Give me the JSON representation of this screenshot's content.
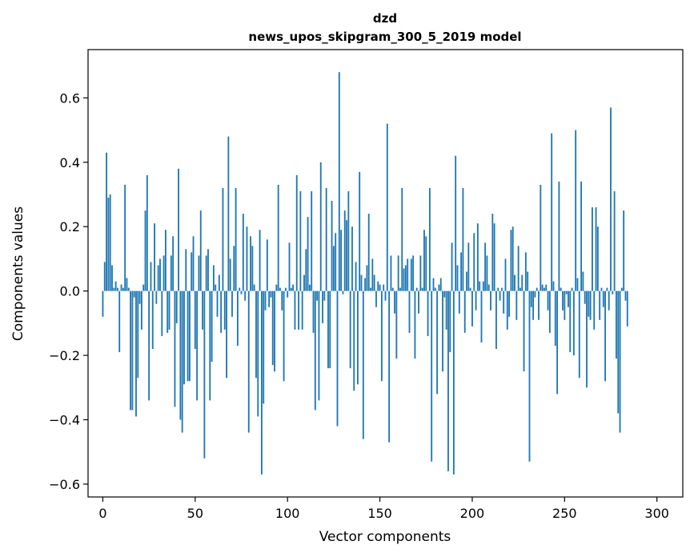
{
  "chart_data": {
    "type": "bar",
    "title_line1": "dzd",
    "title_line2": "news_upos_skipgram_300_5_2019 model",
    "xlabel": "Vector components",
    "ylabel": "Components values",
    "xlim": [
      -8,
      314
    ],
    "ylim": [
      -0.64,
      0.75
    ],
    "xticks": [
      0,
      50,
      100,
      150,
      200,
      250,
      300
    ],
    "yticks": [
      -0.6,
      -0.4,
      -0.2,
      0.0,
      0.2,
      0.4,
      0.6
    ],
    "ytick_labels": [
      "−0.6",
      "−0.4",
      "−0.2",
      "0.0",
      "0.2",
      "0.4",
      "0.6"
    ],
    "bar_color": "#1f77b4",
    "values": [
      -0.08,
      0.09,
      0.43,
      0.29,
      0.3,
      0.08,
      0.01,
      0.03,
      0.01,
      -0.19,
      0.02,
      0.01,
      0.33,
      0.04,
      0.01,
      -0.37,
      -0.37,
      -0.02,
      -0.39,
      -0.27,
      -0.04,
      -0.12,
      0.02,
      0.25,
      0.36,
      -0.34,
      0.09,
      -0.18,
      0.21,
      -0.04,
      0.08,
      0.1,
      -0.14,
      0.11,
      0.19,
      -0.13,
      -0.12,
      0.11,
      0.17,
      -0.36,
      -0.1,
      0.38,
      -0.4,
      -0.44,
      -0.29,
      0.13,
      -0.28,
      -0.28,
      0.12,
      0.17,
      -0.18,
      -0.34,
      0.11,
      0.25,
      -0.12,
      -0.52,
      0.11,
      0.13,
      -0.34,
      -0.22,
      0.08,
      0.02,
      -0.08,
      0.05,
      -0.13,
      0.32,
      -0.12,
      -0.27,
      0.48,
      0.1,
      -0.08,
      0.14,
      0.32,
      -0.17,
      0.01,
      -0.01,
      0.24,
      -0.03,
      0.2,
      -0.44,
      0.17,
      0.14,
      0.02,
      -0.27,
      -0.39,
      0.19,
      -0.57,
      -0.35,
      -0.06,
      0.16,
      -0.05,
      -0.02,
      -0.23,
      -0.25,
      0.02,
      0.33,
      0.01,
      -0.06,
      -0.28,
      0.01,
      -0.02,
      0.15,
      0.01,
      0.02,
      -0.12,
      0.36,
      -0.12,
      0.31,
      -0.12,
      0.05,
      0.13,
      0.23,
      0.02,
      0.31,
      -0.13,
      -0.37,
      -0.03,
      -0.34,
      0.4,
      -0.1,
      -0.03,
      0.32,
      -0.24,
      -0.24,
      0.28,
      0.14,
      0.18,
      -0.42,
      0.68,
      0.19,
      -0.01,
      0.25,
      0.22,
      0.31,
      -0.24,
      0.2,
      -0.31,
      0.09,
      -0.29,
      0.37,
      0.05,
      -0.46,
      0.04,
      0.08,
      0.24,
      0.01,
      0.1,
      0.05,
      -0.05,
      0.03,
      0.02,
      -0.28,
      0.02,
      -0.03,
      0.52,
      -0.47,
      0.11,
      0.01,
      -0.07,
      -0.21,
      0.11,
      0.01,
      0.32,
      0.07,
      0.08,
      0.1,
      -0.13,
      0.1,
      0.11,
      -0.21,
      0.01,
      -0.07,
      0.11,
      0.01,
      0.19,
      0.17,
      -0.14,
      0.32,
      -0.53,
      0.04,
      0.01,
      -0.32,
      0.02,
      0.04,
      -0.25,
      -0.02,
      -0.12,
      -0.56,
      -0.19,
      0.15,
      -0.57,
      0.42,
      0.08,
      -0.07,
      0.12,
      0.32,
      -0.13,
      0.06,
      0.15,
      0.01,
      -0.11,
      0.18,
      -0.06,
      0.21,
      0.03,
      -0.16,
      0.03,
      0.15,
      0.11,
      0.02,
      -0.06,
      0.24,
      0.21,
      -0.18,
      0.01,
      -0.03,
      0.01,
      -0.07,
      0.1,
      -0.12,
      -0.08,
      0.19,
      0.2,
      0.05,
      -0.09,
      0.14,
      0.01,
      0.05,
      -0.25,
      0.12,
      0.06,
      -0.53,
      -0.05,
      -0.09,
      -0.02,
      0.01,
      -0.09,
      0.33,
      0.02,
      0.01,
      0.02,
      -0.06,
      -0.13,
      0.49,
      0.03,
      -0.17,
      -0.32,
      0.34,
      0.01,
      -0.06,
      -0.09,
      -0.01,
      -0.05,
      -0.19,
      0.01,
      -0.2,
      0.5,
      0.04,
      -0.27,
      0.34,
      0.06,
      -0.04,
      -0.3,
      -0.08,
      -0.09,
      0.26,
      -0.12,
      0.26,
      0.2,
      -0.09,
      0.01,
      -0.05,
      -0.28,
      0.01,
      -0.06,
      0.57,
      -0.01,
      0.31,
      -0.21,
      -0.38,
      -0.44,
      0.01,
      0.25,
      -0.03,
      -0.11
    ]
  }
}
